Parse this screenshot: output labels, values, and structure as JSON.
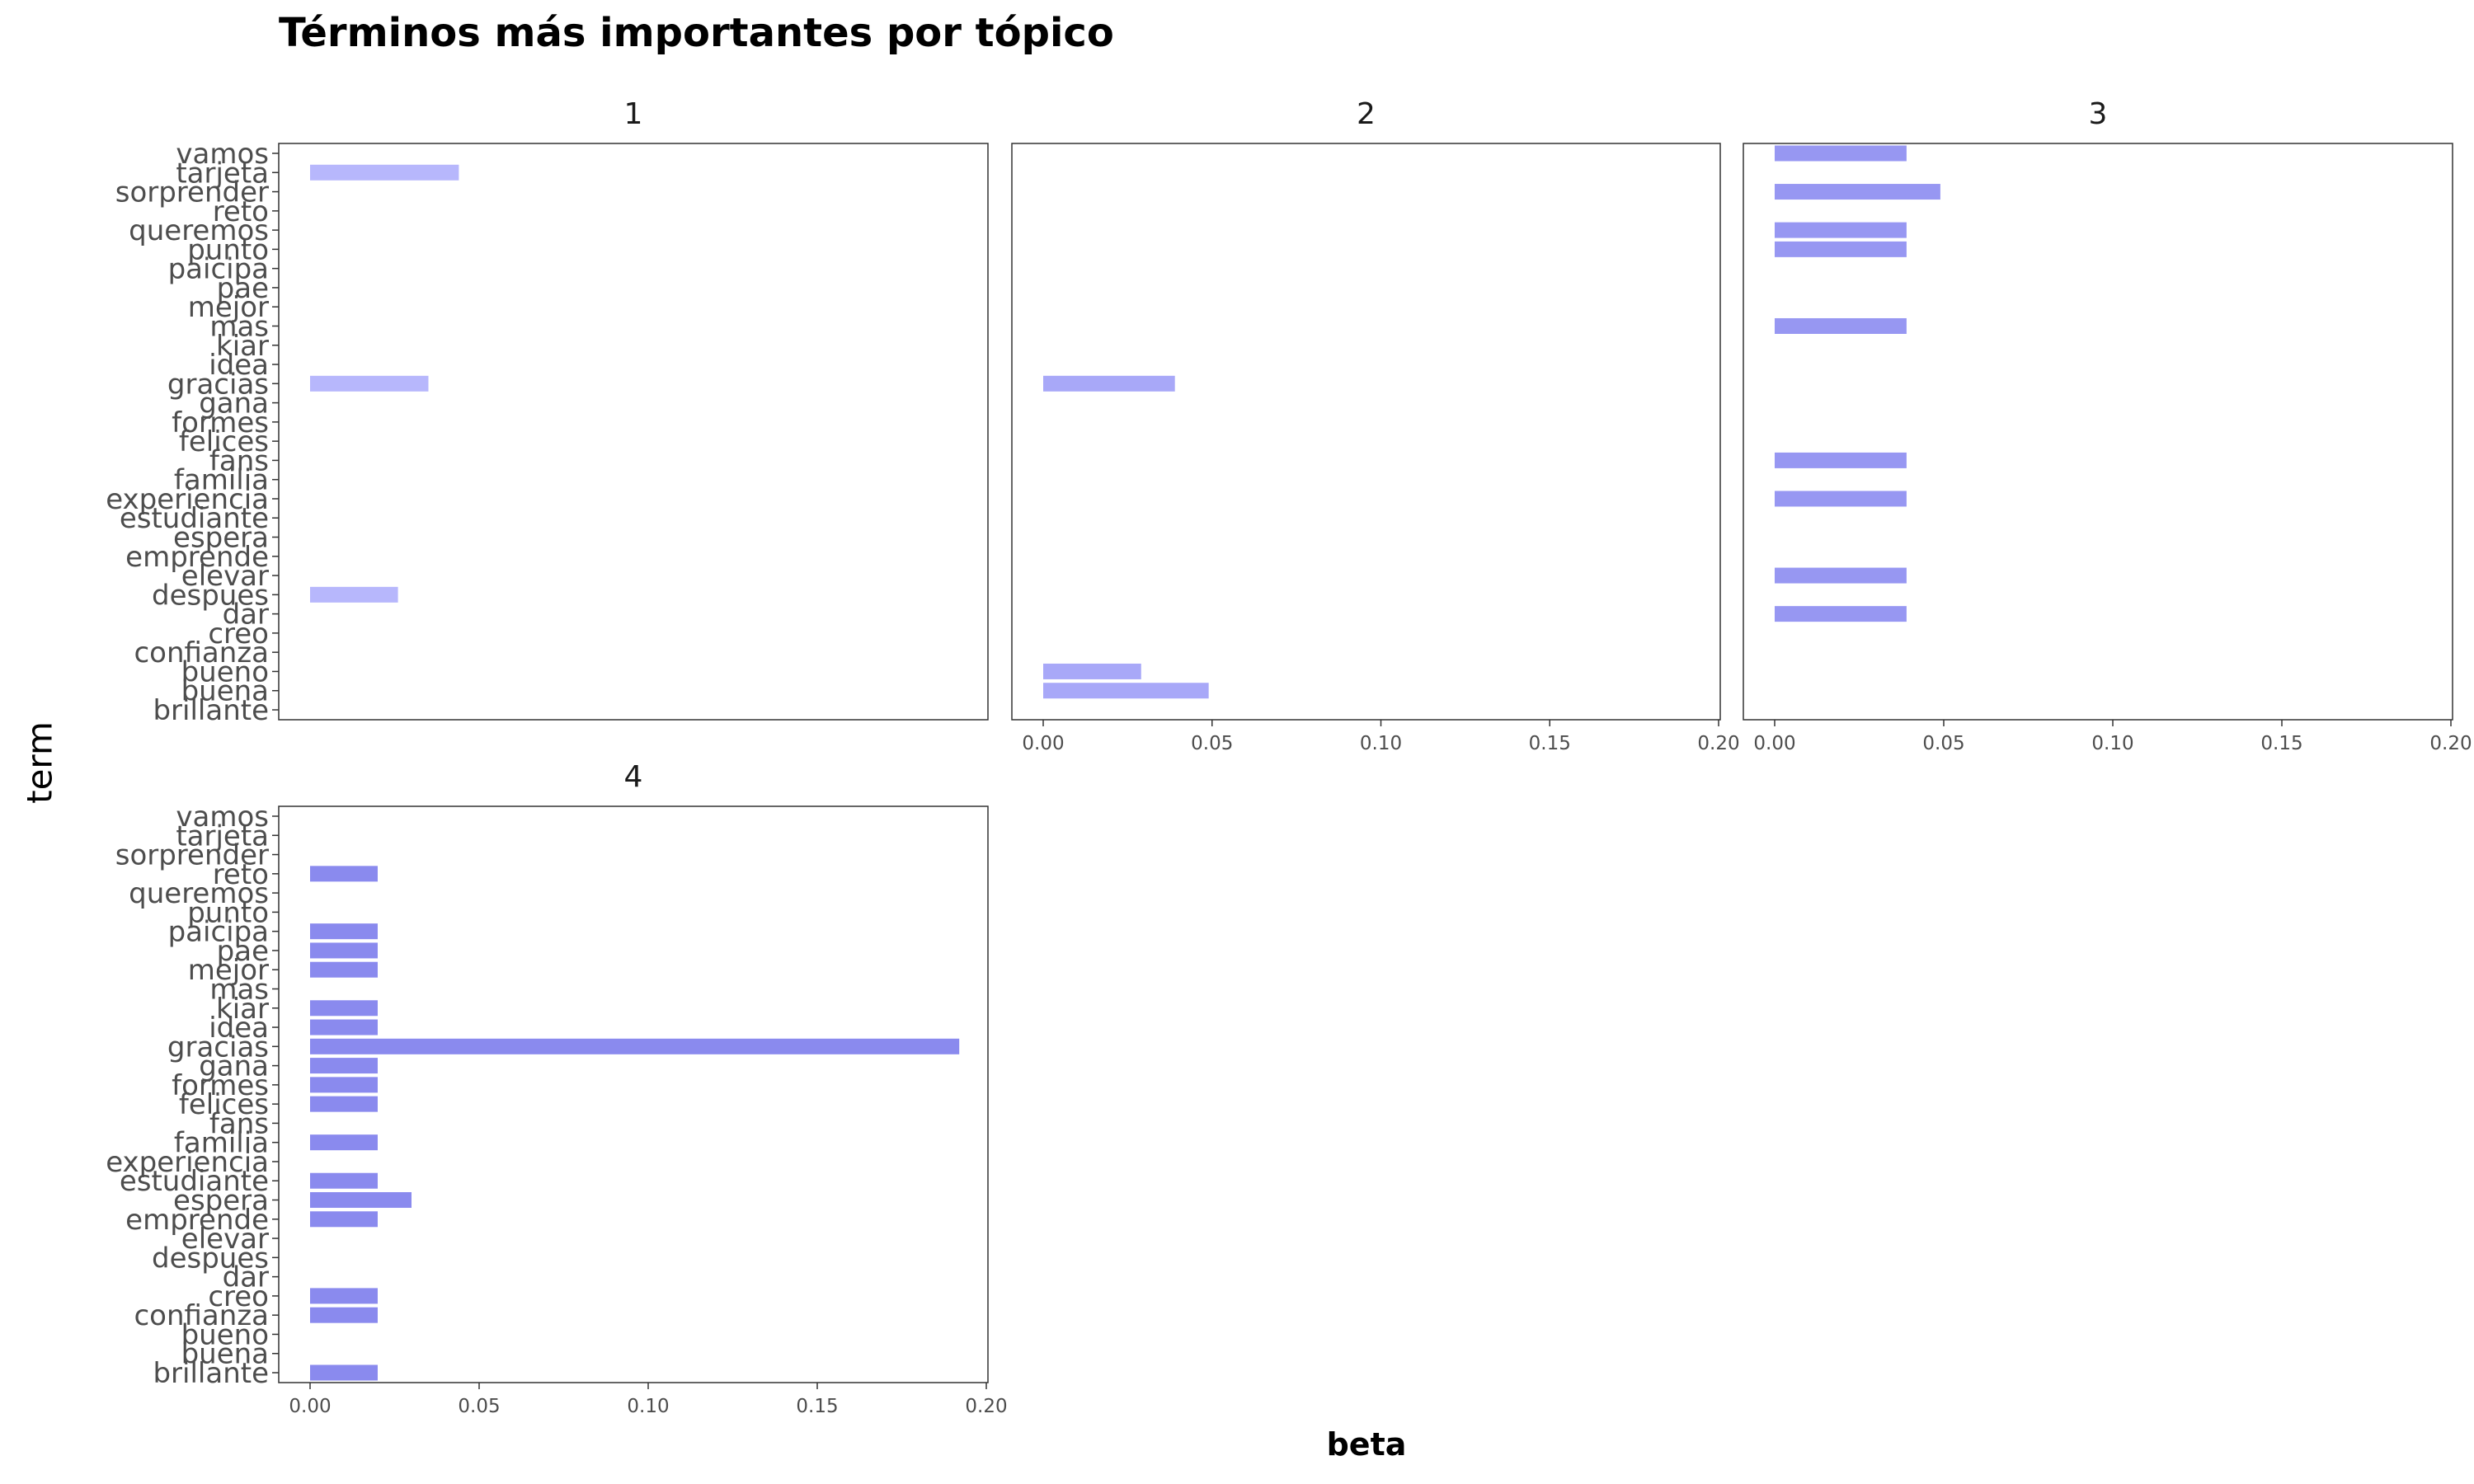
{
  "chart_data": {
    "type": "bar",
    "orientation": "horizontal",
    "title": "Términos más importantes por tópico",
    "xlabel": "beta",
    "ylabel": "term",
    "xlim": [
      0,
      0.2
    ],
    "x_ticks": [
      "0.00",
      "0.05",
      "0.10",
      "0.15",
      "0.20"
    ],
    "grid": false,
    "terms": [
      "brillante",
      "buena",
      "bueno",
      "confianza",
      "creo",
      "dar",
      "despues",
      "elevar",
      "emprende",
      "espera",
      "estudiante",
      "experiencia",
      "familia",
      "fans",
      "felices",
      "formes",
      "gana",
      "gracias",
      "idea",
      "kiar",
      "mas",
      "mejor",
      "pae",
      "paicipa",
      "punto",
      "queremos",
      "reto",
      "sorprender",
      "tarjeta",
      "vamos"
    ],
    "panels": [
      {
        "label": "1",
        "color": "#b7b7fc",
        "values": {
          "tarjeta": 0.044,
          "gracias": 0.035,
          "despues": 0.026
        }
      },
      {
        "label": "2",
        "color": "#a8a8f8",
        "values": {
          "gracias": 0.039,
          "bueno": 0.029,
          "buena": 0.049
        }
      },
      {
        "label": "3",
        "color": "#9797f2",
        "values": {
          "vamos": 0.039,
          "sorprender": 0.049,
          "queremos": 0.039,
          "punto": 0.039,
          "mas": 0.039,
          "fans": 0.039,
          "experiencia": 0.039,
          "elevar": 0.039,
          "dar": 0.039
        }
      },
      {
        "label": "4",
        "color": "#8a8aee",
        "values": {
          "reto": 0.02,
          "paicipa": 0.02,
          "pae": 0.02,
          "mejor": 0.02,
          "kiar": 0.02,
          "idea": 0.02,
          "gracias": 0.192,
          "gana": 0.02,
          "formes": 0.02,
          "felices": 0.02,
          "familia": 0.02,
          "estudiante": 0.02,
          "espera": 0.03,
          "emprende": 0.02,
          "creo": 0.02,
          "confianza": 0.02,
          "brillante": 0.02
        }
      }
    ]
  }
}
